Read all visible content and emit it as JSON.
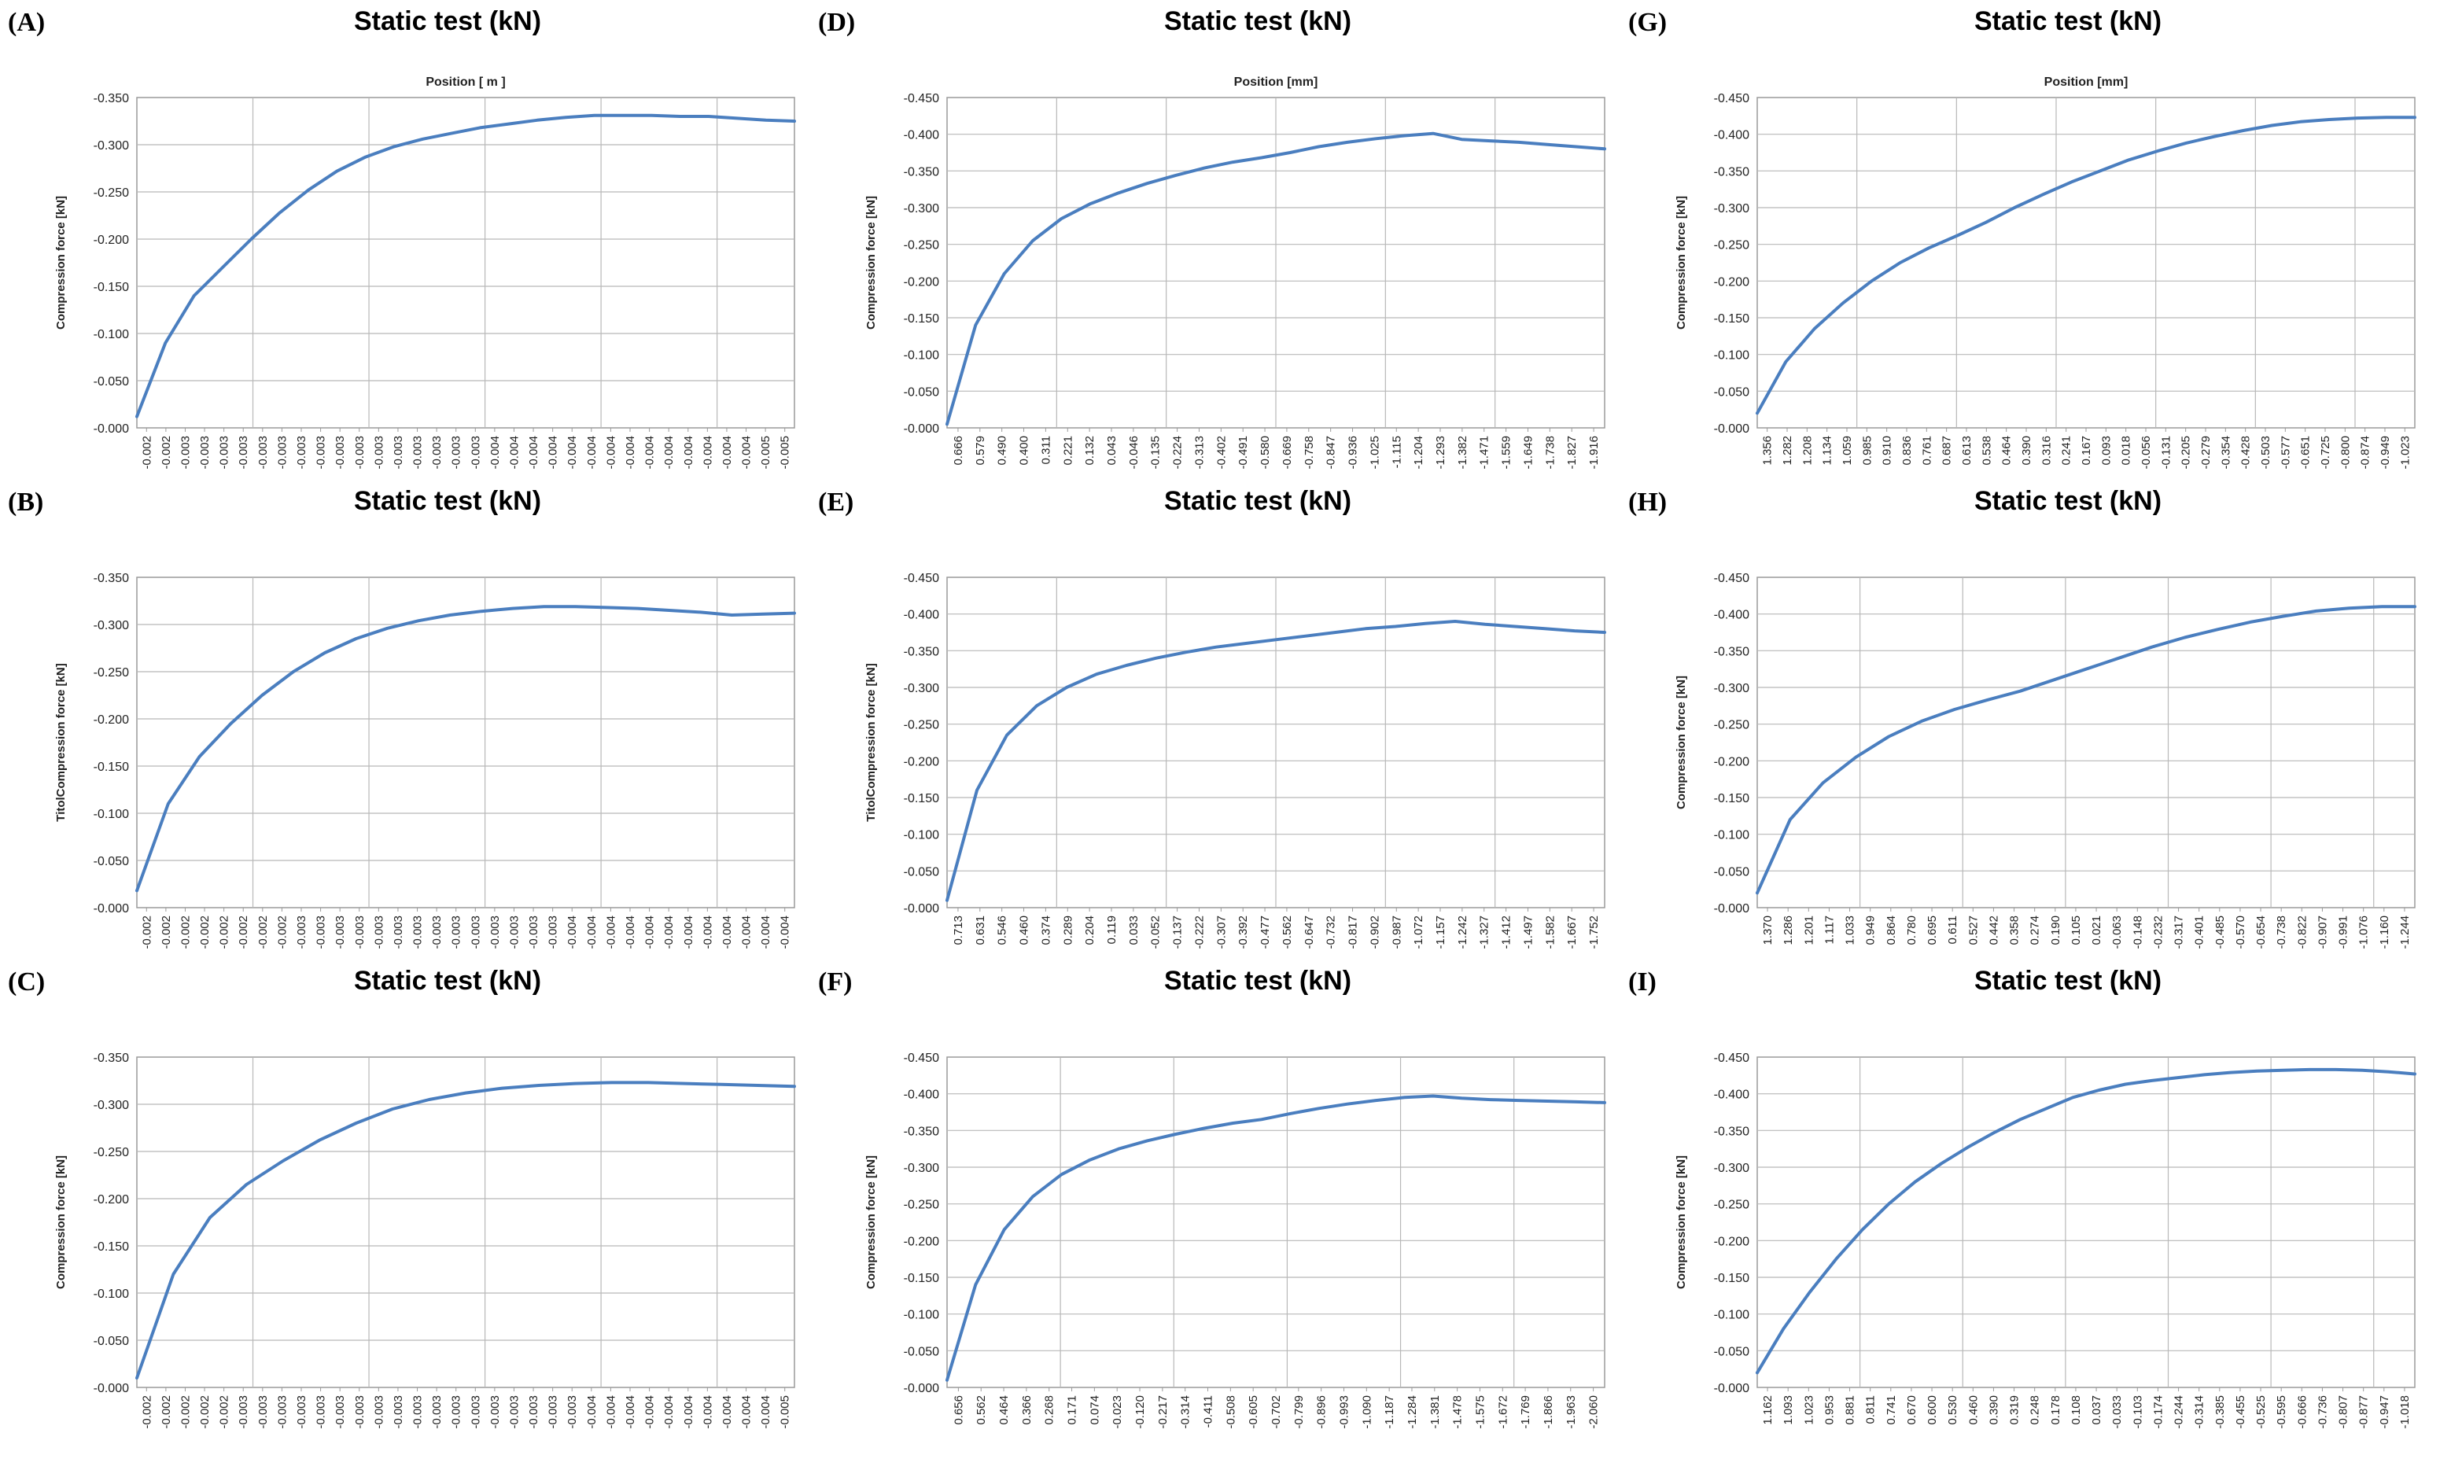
{
  "chart_data": [
    {
      "id": "A",
      "panel_label": "(A)",
      "title": "Static test (kN)",
      "top_label": "Position [ m ]",
      "ylabel": "Compression force [kN]",
      "type": "line",
      "color": "#4a7ebf",
      "ylim": [
        0,
        0.35
      ],
      "ytick_step": 0.05,
      "ytick_labels": [
        "-0.350",
        "-0.300",
        "-0.250",
        "-0.200",
        "-0.150",
        "-0.100",
        "-0.050",
        "-0.000"
      ],
      "x_tick_labels": [
        "-0.002",
        "-0.002",
        "-0.003",
        "-0.003",
        "-0.003",
        "-0.003",
        "-0.003",
        "-0.003",
        "-0.003",
        "-0.003",
        "-0.003",
        "-0.003",
        "-0.003",
        "-0.003",
        "-0.003",
        "-0.003",
        "-0.003",
        "-0.003",
        "-0.004",
        "-0.004",
        "-0.004",
        "-0.004",
        "-0.004",
        "-0.004",
        "-0.004",
        "-0.004",
        "-0.004",
        "-0.004",
        "-0.004",
        "-0.004",
        "-0.004",
        "-0.004",
        "-0.005",
        "-0.005"
      ],
      "x_grid_every": 6,
      "series": [
        {
          "values": [
            0.012,
            0.09,
            0.14,
            0.17,
            0.2,
            0.228,
            0.252,
            0.272,
            0.287,
            0.298,
            0.306,
            0.312,
            0.318,
            0.322,
            0.326,
            0.329,
            0.331,
            0.331,
            0.331,
            0.33,
            0.33,
            0.328,
            0.326,
            0.325
          ]
        }
      ]
    },
    {
      "id": "B",
      "panel_label": "(B)",
      "title": "Static test (kN)",
      "top_label": "",
      "ylabel": "TitolCompression force [kN]",
      "type": "line",
      "color": "#4a7ebf",
      "ylim": [
        0,
        0.35
      ],
      "ytick_step": 0.05,
      "ytick_labels": [
        "-0.350",
        "-0.300",
        "-0.250",
        "-0.200",
        "-0.150",
        "-0.100",
        "-0.050",
        "-0.000"
      ],
      "x_tick_labels": [
        "-0.002",
        "-0.002",
        "-0.002",
        "-0.002",
        "-0.002",
        "-0.002",
        "-0.002",
        "-0.002",
        "-0.003",
        "-0.003",
        "-0.003",
        "-0.003",
        "-0.003",
        "-0.003",
        "-0.003",
        "-0.003",
        "-0.003",
        "-0.003",
        "-0.003",
        "-0.003",
        "-0.003",
        "-0.003",
        "-0.004",
        "-0.004",
        "-0.004",
        "-0.004",
        "-0.004",
        "-0.004",
        "-0.004",
        "-0.004",
        "-0.004",
        "-0.004",
        "-0.004",
        "-0.004"
      ],
      "x_grid_every": 6,
      "series": [
        {
          "values": [
            0.018,
            0.11,
            0.16,
            0.195,
            0.225,
            0.25,
            0.27,
            0.285,
            0.296,
            0.304,
            0.31,
            0.314,
            0.317,
            0.319,
            0.319,
            0.318,
            0.317,
            0.315,
            0.313,
            0.31,
            0.311,
            0.312
          ]
        }
      ]
    },
    {
      "id": "C",
      "panel_label": "(C)",
      "title": "Static test (kN)",
      "top_label": "",
      "ylabel": "Compression force [kN]",
      "type": "line",
      "color": "#4a7ebf",
      "ylim": [
        0,
        0.35
      ],
      "ytick_step": 0.05,
      "ytick_labels": [
        "-0.350",
        "-0.300",
        "-0.250",
        "-0.200",
        "-0.150",
        "-0.100",
        "-0.050",
        "-0.000"
      ],
      "x_tick_labels": [
        "-0.002",
        "-0.002",
        "-0.002",
        "-0.002",
        "-0.002",
        "-0.003",
        "-0.003",
        "-0.003",
        "-0.003",
        "-0.003",
        "-0.003",
        "-0.003",
        "-0.003",
        "-0.003",
        "-0.003",
        "-0.003",
        "-0.003",
        "-0.003",
        "-0.003",
        "-0.003",
        "-0.003",
        "-0.003",
        "-0.003",
        "-0.004",
        "-0.004",
        "-0.004",
        "-0.004",
        "-0.004",
        "-0.004",
        "-0.004",
        "-0.004",
        "-0.004",
        "-0.004",
        "-0.005"
      ],
      "x_grid_every": 6,
      "series": [
        {
          "values": [
            0.01,
            0.12,
            0.18,
            0.215,
            0.24,
            0.262,
            0.28,
            0.295,
            0.305,
            0.312,
            0.317,
            0.32,
            0.322,
            0.323,
            0.323,
            0.322,
            0.321,
            0.32,
            0.319
          ]
        }
      ]
    },
    {
      "id": "D",
      "panel_label": "(D)",
      "title": "Static test (kN)",
      "top_label": "Position [mm]",
      "ylabel": "Compression force [kN]",
      "type": "line",
      "color": "#4a7ebf",
      "ylim": [
        0,
        0.45
      ],
      "ytick_step": 0.05,
      "ytick_labels": [
        "-0.450",
        "-0.400",
        "-0.350",
        "-0.300",
        "-0.250",
        "-0.200",
        "-0.150",
        "-0.100",
        "-0.050",
        "-0.000"
      ],
      "x_tick_labels": [
        "0.666",
        "0.579",
        "0.490",
        "0.400",
        "0.311",
        "0.221",
        "0.132",
        "0.043",
        "-0.046",
        "-0.135",
        "-0.224",
        "-0.313",
        "-0.402",
        "-0.491",
        "-0.580",
        "-0.669",
        "-0.758",
        "-0.847",
        "-0.936",
        "-1.025",
        "-1.115",
        "-1.204",
        "-1.293",
        "-1.382",
        "-1.471",
        "-1.559",
        "-1.649",
        "-1.738",
        "-1.827",
        "-1.916"
      ],
      "x_grid_every": 5,
      "series": [
        {
          "values": [
            0.005,
            0.14,
            0.21,
            0.255,
            0.285,
            0.305,
            0.32,
            0.333,
            0.344,
            0.354,
            0.362,
            0.368,
            0.375,
            0.383,
            0.389,
            0.394,
            0.398,
            0.401,
            0.393,
            0.391,
            0.389,
            0.386,
            0.383,
            0.38
          ]
        }
      ]
    },
    {
      "id": "E",
      "panel_label": "(E)",
      "title": "Static test (kN)",
      "top_label": "",
      "ylabel": "TitolCompression force [kN]",
      "type": "line",
      "color": "#4a7ebf",
      "ylim": [
        0,
        0.45
      ],
      "ytick_step": 0.05,
      "ytick_labels": [
        "-0.450",
        "-0.400",
        "-0.350",
        "-0.300",
        "-0.250",
        "-0.200",
        "-0.150",
        "-0.100",
        "-0.050",
        "-0.000"
      ],
      "x_tick_labels": [
        "0.713",
        "0.631",
        "0.546",
        "0.460",
        "0.374",
        "0.289",
        "0.204",
        "0.119",
        "0.033",
        "-0.052",
        "-0.137",
        "-0.222",
        "-0.307",
        "-0.392",
        "-0.477",
        "-0.562",
        "-0.647",
        "-0.732",
        "-0.817",
        "-0.902",
        "-0.987",
        "-1.072",
        "-1.157",
        "-1.242",
        "-1.327",
        "-1.412",
        "-1.497",
        "-1.582",
        "-1.667",
        "-1.752"
      ],
      "x_grid_every": 5,
      "series": [
        {
          "values": [
            0.01,
            0.16,
            0.235,
            0.275,
            0.3,
            0.318,
            0.33,
            0.34,
            0.348,
            0.355,
            0.36,
            0.365,
            0.37,
            0.375,
            0.38,
            0.383,
            0.387,
            0.39,
            0.386,
            0.383,
            0.38,
            0.377,
            0.375
          ]
        }
      ]
    },
    {
      "id": "F",
      "panel_label": "(F)",
      "title": "Static test (kN)",
      "top_label": "",
      "ylabel": "Compression force [kN]",
      "type": "line",
      "color": "#4a7ebf",
      "ylim": [
        0,
        0.45
      ],
      "ytick_step": 0.05,
      "ytick_labels": [
        "-0.450",
        "-0.400",
        "-0.350",
        "-0.300",
        "-0.250",
        "-0.200",
        "-0.150",
        "-0.100",
        "-0.050",
        "-0.000"
      ],
      "x_tick_labels": [
        "0.656",
        "0.562",
        "0.464",
        "0.366",
        "0.268",
        "0.171",
        "0.074",
        "-0.023",
        "-0.120",
        "-0.217",
        "-0.314",
        "-0.411",
        "-0.508",
        "-0.605",
        "-0.702",
        "-0.799",
        "-0.896",
        "-0.993",
        "-1.090",
        "-1.187",
        "-1.284",
        "-1.381",
        "-1.478",
        "-1.575",
        "-1.672",
        "-1.769",
        "-1.866",
        "-1.963",
        "-2.060"
      ],
      "x_grid_every": 5,
      "series": [
        {
          "values": [
            0.01,
            0.14,
            0.215,
            0.26,
            0.29,
            0.31,
            0.325,
            0.336,
            0.345,
            0.353,
            0.36,
            0.365,
            0.373,
            0.38,
            0.386,
            0.391,
            0.395,
            0.397,
            0.394,
            0.392,
            0.391,
            0.39,
            0.389,
            0.388
          ]
        }
      ]
    },
    {
      "id": "G",
      "panel_label": "(G)",
      "title": "Static test (kN)",
      "top_label": "Position [mm]",
      "ylabel": "Compression force [kN]",
      "type": "line",
      "color": "#4a7ebf",
      "ylim": [
        0,
        0.45
      ],
      "ytick_step": 0.05,
      "ytick_labels": [
        "-0.450",
        "-0.400",
        "-0.350",
        "-0.300",
        "-0.250",
        "-0.200",
        "-0.150",
        "-0.100",
        "-0.050",
        "-0.000"
      ],
      "x_tick_labels": [
        "1.356",
        "1.282",
        "1.208",
        "1.134",
        "1.059",
        "0.985",
        "0.910",
        "0.836",
        "0.761",
        "0.687",
        "0.613",
        "0.538",
        "0.464",
        "0.390",
        "0.316",
        "0.241",
        "0.167",
        "0.093",
        "0.018",
        "-0.056",
        "-0.131",
        "-0.205",
        "-0.279",
        "-0.354",
        "-0.428",
        "-0.503",
        "-0.577",
        "-0.651",
        "-0.725",
        "-0.800",
        "-0.874",
        "-0.949",
        "-1.023"
      ],
      "x_grid_every": 5,
      "series": [
        {
          "values": [
            0.02,
            0.09,
            0.135,
            0.17,
            0.2,
            0.225,
            0.245,
            0.262,
            0.28,
            0.3,
            0.318,
            0.335,
            0.35,
            0.365,
            0.377,
            0.388,
            0.397,
            0.405,
            0.412,
            0.417,
            0.42,
            0.422,
            0.423,
            0.423
          ]
        }
      ]
    },
    {
      "id": "H",
      "panel_label": "(H)",
      "title": "Static test (kN)",
      "top_label": "",
      "ylabel": "Compression force [kN]",
      "type": "line",
      "color": "#4a7ebf",
      "ylim": [
        0,
        0.45
      ],
      "ytick_step": 0.05,
      "ytick_labels": [
        "-0.450",
        "-0.400",
        "-0.350",
        "-0.300",
        "-0.250",
        "-0.200",
        "-0.150",
        "-0.100",
        "-0.050",
        "-0.000"
      ],
      "x_tick_labels": [
        "1.370",
        "1.286",
        "1.201",
        "1.117",
        "1.033",
        "0.949",
        "0.864",
        "0.780",
        "0.695",
        "0.611",
        "0.527",
        "0.442",
        "0.358",
        "0.274",
        "0.190",
        "0.105",
        "0.021",
        "-0.063",
        "-0.148",
        "-0.232",
        "-0.317",
        "-0.401",
        "-0.485",
        "-0.570",
        "-0.654",
        "-0.738",
        "-0.822",
        "-0.907",
        "-0.991",
        "-1.076",
        "-1.160",
        "-1.244"
      ],
      "x_grid_every": 5,
      "series": [
        {
          "values": [
            0.02,
            0.12,
            0.17,
            0.205,
            0.233,
            0.254,
            0.27,
            0.283,
            0.295,
            0.31,
            0.325,
            0.34,
            0.355,
            0.368,
            0.379,
            0.389,
            0.397,
            0.404,
            0.408,
            0.41,
            0.41
          ]
        }
      ]
    },
    {
      "id": "I",
      "panel_label": "(I)",
      "title": "Static test (kN)",
      "top_label": "",
      "ylabel": "Compression force [kN]",
      "type": "line",
      "color": "#4a7ebf",
      "ylim": [
        0,
        0.45
      ],
      "ytick_step": 0.05,
      "ytick_labels": [
        "-0.450",
        "-0.400",
        "-0.350",
        "-0.300",
        "-0.250",
        "-0.200",
        "-0.150",
        "-0.100",
        "-0.050",
        "-0.000"
      ],
      "x_tick_labels": [
        "1.162",
        "1.093",
        "1.023",
        "0.953",
        "0.881",
        "0.811",
        "0.741",
        "0.670",
        "0.600",
        "0.530",
        "0.460",
        "0.390",
        "0.319",
        "0.248",
        "0.178",
        "0.108",
        "0.037",
        "-0.033",
        "-0.103",
        "-0.174",
        "-0.244",
        "-0.314",
        "-0.385",
        "-0.455",
        "-0.525",
        "-0.595",
        "-0.666",
        "-0.736",
        "-0.807",
        "-0.877",
        "-0.947",
        "-1.018"
      ],
      "x_grid_every": 5,
      "series": [
        {
          "values": [
            0.02,
            0.08,
            0.13,
            0.175,
            0.215,
            0.25,
            0.28,
            0.305,
            0.327,
            0.347,
            0.365,
            0.38,
            0.395,
            0.405,
            0.413,
            0.418,
            0.422,
            0.426,
            0.429,
            0.431,
            0.432,
            0.433,
            0.433,
            0.432,
            0.43,
            0.427
          ]
        }
      ]
    }
  ]
}
